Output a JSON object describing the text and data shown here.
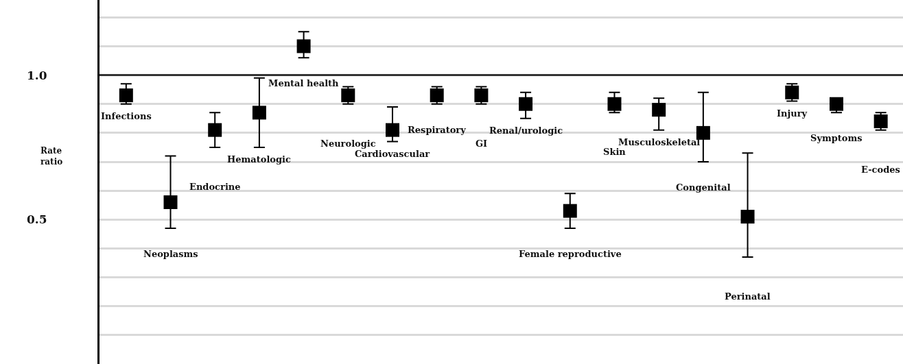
{
  "chart_data": {
    "type": "scatter",
    "ylabel": "Rate ratio",
    "categories": [
      "Infections",
      "Neoplasms",
      "Endocrine",
      "Hematologic",
      "Mental health",
      "Neurologic",
      "Cardiovascular",
      "Respiratory",
      "GI",
      "Renal/urologic",
      "Female reproductive",
      "Skin",
      "Musculoskeletal",
      "Congenital",
      "Perinatal",
      "Injury",
      "Symptoms",
      "E-codes"
    ],
    "series": [
      {
        "color": "#000000",
        "values": [
          0.93,
          0.56,
          0.81,
          0.87,
          1.1,
          0.93,
          0.81,
          0.93,
          0.93,
          0.9,
          0.53,
          0.9,
          0.88,
          0.8,
          0.51,
          0.94,
          0.9,
          0.84
        ],
        "errors": [
          [
            0.9,
            0.97
          ],
          [
            0.47,
            0.72
          ],
          [
            0.75,
            0.87
          ],
          [
            0.75,
            0.99
          ],
          [
            1.06,
            1.15
          ],
          [
            0.9,
            0.96
          ],
          [
            0.77,
            0.89
          ],
          [
            0.9,
            0.96
          ],
          [
            0.9,
            0.96
          ],
          [
            0.85,
            0.94
          ],
          [
            0.47,
            0.59
          ],
          [
            0.87,
            0.94
          ],
          [
            0.81,
            0.92
          ],
          [
            0.7,
            0.94
          ],
          [
            0.37,
            0.73
          ],
          [
            0.91,
            0.97
          ],
          [
            0.87,
            0.92
          ],
          [
            0.81,
            0.87
          ]
        ]
      }
    ],
    "ylim": [
      0,
      1.26
    ],
    "yticks": [
      {
        "value": 0.1,
        "label": null
      },
      {
        "value": 0.2,
        "label": null
      },
      {
        "value": 0.3,
        "label": null
      },
      {
        "value": 0.4,
        "label": null
      },
      {
        "value": 0.5,
        "label": "0.5"
      },
      {
        "value": 0.6,
        "label": null
      },
      {
        "value": 0.7,
        "label": null
      },
      {
        "value": 0.8,
        "label": null
      },
      {
        "value": 0.9,
        "label": null
      },
      {
        "value": 1.0,
        "label": "1.0"
      },
      {
        "value": 1.1,
        "label": null
      },
      {
        "value": 1.2,
        "label": null
      }
    ],
    "ref_lines": [
      {
        "axis": "y",
        "value": 1.0,
        "color": "#333333"
      }
    ],
    "grid": "y",
    "marker": "square",
    "tick_labels": "y"
  }
}
